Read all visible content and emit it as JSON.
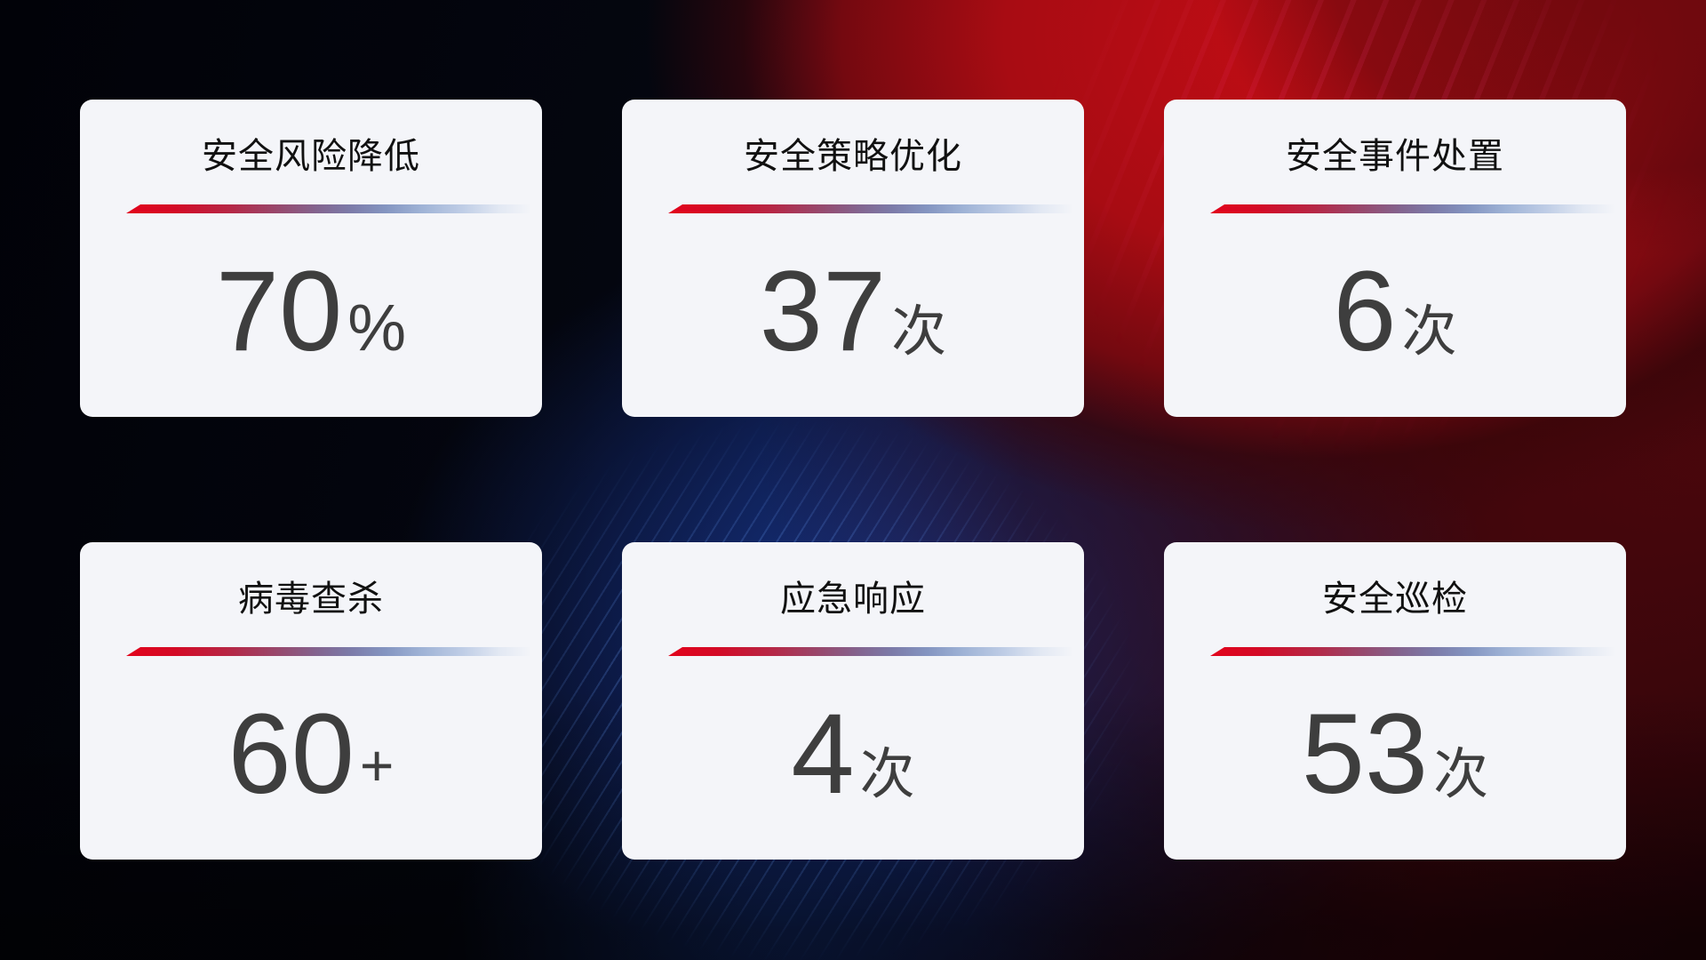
{
  "cards": [
    {
      "title": "安全风险降低",
      "value": "70",
      "unit": "%"
    },
    {
      "title": "安全策略优化",
      "value": "37",
      "unit": "次"
    },
    {
      "title": "安全事件处置",
      "value": "6",
      "unit": "次"
    },
    {
      "title": "病毒查杀",
      "value": "60",
      "unit": "+"
    },
    {
      "title": "应急响应",
      "value": "4",
      "unit": "次"
    },
    {
      "title": "安全巡检",
      "value": "53",
      "unit": "次"
    }
  ],
  "colors": {
    "card_background": "#f4f5f9",
    "title_text": "#111111",
    "value_text": "#3e3e3e",
    "accent_line_red": "#e2041c",
    "accent_line_blue": "#aec2e0",
    "background_red": "#b50d15",
    "background_blue": "#1b3fa0",
    "background_black": "#05060f"
  }
}
